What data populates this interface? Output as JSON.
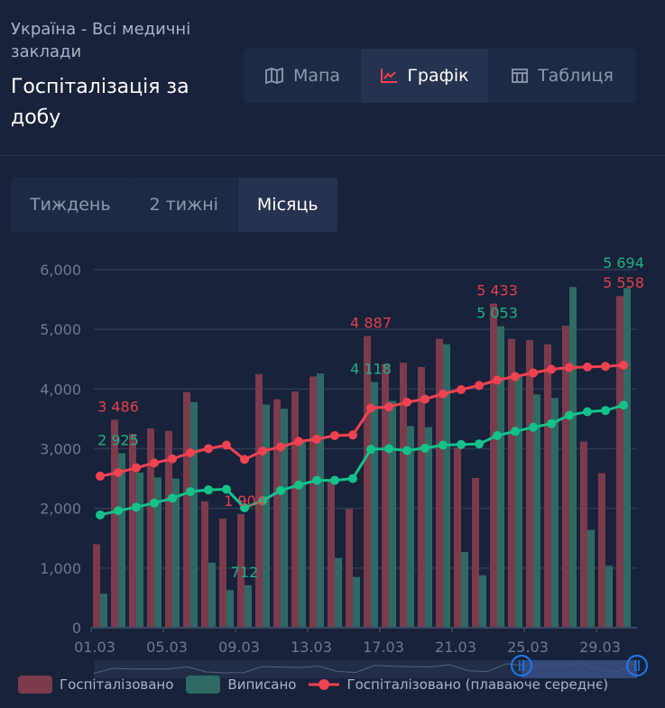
{
  "header": {
    "subtitle": "Україна - Всі медичні заклади",
    "title": "Госпіталізація за добу"
  },
  "views": [
    {
      "label": "Мапа",
      "icon": "map-icon"
    },
    {
      "label": "Графік",
      "icon": "chart-line-icon",
      "active": true
    },
    {
      "label": "Таблиця",
      "icon": "table-icon"
    }
  ],
  "periods": [
    {
      "label": "Тиждень"
    },
    {
      "label": "2 тижні"
    },
    {
      "label": "Місяць",
      "active": true
    }
  ],
  "colors": {
    "hospitalized": "#7b3b4b",
    "discharged": "#2e6a63",
    "avg_hosp": "#f2414f",
    "avg_disch": "#13c28b",
    "label_hosp": "#e0404e",
    "label_disch": "#1fb083",
    "accent": "#f2414f",
    "zoom_handle": "#1a7cf2"
  },
  "legend": {
    "hospitalized": "Госпіталізовано",
    "discharged": "Виписано",
    "moving_avg": "Госпіталізовано (плаваюче середнє)"
  },
  "chart_data": {
    "type": "bar",
    "categories": [
      "01.03",
      "02.03",
      "03.03",
      "04.03",
      "05.03",
      "06.03",
      "07.03",
      "08.03",
      "09.03",
      "10.03",
      "11.03",
      "12.03",
      "13.03",
      "14.03",
      "15.03",
      "16.03",
      "17.03",
      "18.03",
      "19.03",
      "20.03",
      "21.03",
      "22.03",
      "23.03",
      "24.03",
      "25.03",
      "26.03",
      "27.03",
      "28.03",
      "29.03",
      "30.03"
    ],
    "x_tick_labels": [
      "01.03",
      "05.03",
      "09.03",
      "13.03",
      "17.03",
      "21.03",
      "25.03",
      "29.03"
    ],
    "y_tick_labels": [
      "0",
      "1,000",
      "2,000",
      "3,000",
      "4,000",
      "5,000",
      "6,000"
    ],
    "ylim": [
      0,
      6000
    ],
    "grid": true,
    "legend_position": "bottom",
    "series": [
      {
        "name": "Госпіталізовано",
        "type": "bar",
        "values": [
          1400,
          3486,
          3250,
          3340,
          3300,
          3950,
          2120,
          1830,
          1904,
          4250,
          3830,
          3960,
          4210,
          2460,
          1990,
          4887,
          4420,
          4440,
          4370,
          4840,
          3020,
          2510,
          5433,
          4840,
          4820,
          4750,
          5060,
          3120,
          2590,
          5558
        ]
      },
      {
        "name": "Виписано",
        "type": "bar",
        "values": [
          570,
          2925,
          2600,
          2520,
          2500,
          3780,
          1090,
          630,
          712,
          3740,
          3670,
          3150,
          4260,
          1170,
          850,
          4118,
          3800,
          3380,
          3360,
          4750,
          1270,
          880,
          5053,
          4210,
          3910,
          3850,
          5710,
          1640,
          1040,
          5694
        ]
      },
      {
        "name": "Госпіталізовано (плаваюче середнє)",
        "type": "line",
        "values": [
          2540,
          2600,
          2680,
          2760,
          2830,
          2930,
          3000,
          3060,
          2820,
          2960,
          3030,
          3120,
          3160,
          3220,
          3230,
          3680,
          3700,
          3780,
          3830,
          3920,
          3990,
          4060,
          4150,
          4210,
          4270,
          4330,
          4360,
          4370,
          4380,
          4400
        ]
      },
      {
        "type": "line",
        "values": [
          1890,
          1960,
          2020,
          2090,
          2170,
          2280,
          2310,
          2320,
          2010,
          2130,
          2300,
          2390,
          2470,
          2470,
          2500,
          2990,
          3000,
          2970,
          3010,
          3060,
          3070,
          3080,
          3220,
          3290,
          3360,
          3420,
          3560,
          3620,
          3640,
          3730
        ]
      }
    ],
    "data_labels": [
      {
        "series": 0,
        "index": 1,
        "text": "3 486"
      },
      {
        "series": 1,
        "index": 1,
        "text": "2 925"
      },
      {
        "series": 0,
        "index": 8,
        "text": "1 904"
      },
      {
        "series": 1,
        "index": 8,
        "text": "712"
      },
      {
        "series": 0,
        "index": 15,
        "text": "4 887"
      },
      {
        "series": 1,
        "index": 15,
        "text": "4 118"
      },
      {
        "series": 0,
        "index": 22,
        "text": "5 433"
      },
      {
        "series": 1,
        "index": 22,
        "text": "5 053"
      },
      {
        "series": 0,
        "index": 29,
        "text": "5 558"
      },
      {
        "series": 1,
        "index": 29,
        "text": "5 694"
      }
    ],
    "zoom_window": {
      "start": "24.03",
      "end": "30.03"
    }
  }
}
